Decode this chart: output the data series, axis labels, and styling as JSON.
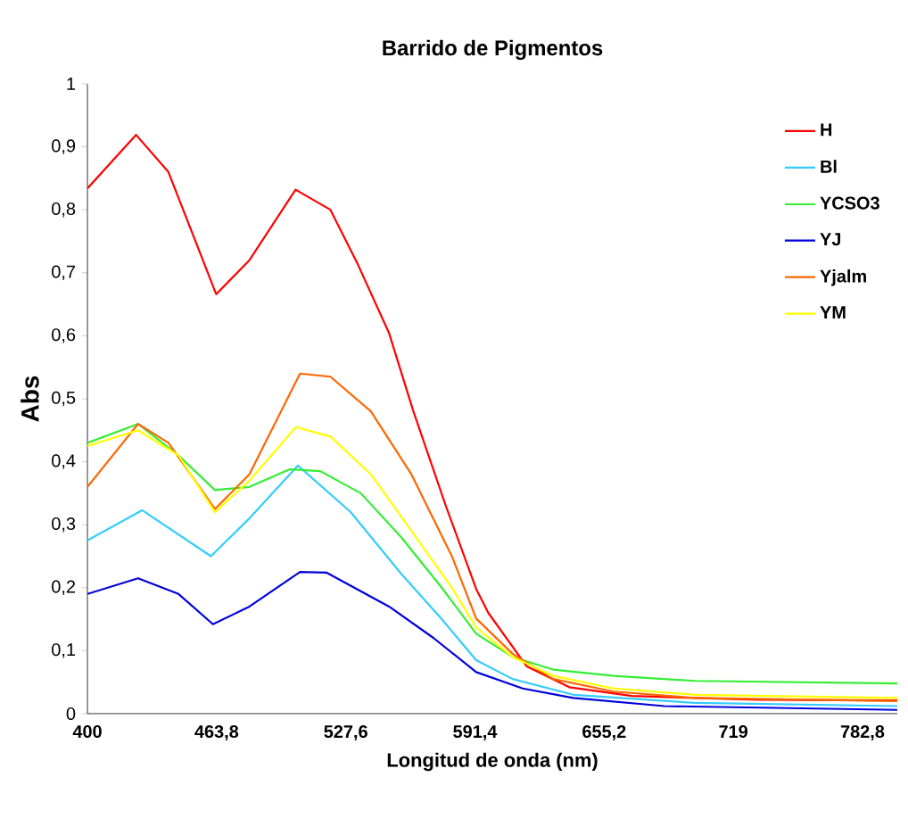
{
  "chart_data": {
    "type": "line",
    "title": "Barrido de Pigmentos",
    "xlabel": "Longitud de onda (nm)",
    "ylabel": "Abs",
    "xlim": [
      400,
      800
    ],
    "ylim": [
      0,
      1
    ],
    "xticks": [
      400,
      {
        "value": 463.8,
        "label": "463,8"
      },
      {
        "value": 527.6,
        "label": "527,6"
      },
      {
        "value": 591.4,
        "label": "591,4"
      },
      {
        "value": 655.2,
        "label": "655,2"
      },
      719,
      {
        "value": 782.8,
        "label": "782,8"
      }
    ],
    "yticks": [
      0,
      {
        "value": 0.1,
        "label": "0,1"
      },
      {
        "value": 0.2,
        "label": "0,2"
      },
      {
        "value": 0.3,
        "label": "0,3"
      },
      {
        "value": 0.4,
        "label": "0,4"
      },
      {
        "value": 0.5,
        "label": "0,5"
      },
      {
        "value": 0.6,
        "label": "0,6"
      },
      {
        "value": 0.7,
        "label": "0,7"
      },
      {
        "value": 0.8,
        "label": "0,8"
      },
      {
        "value": 0.9,
        "label": "0,9"
      },
      1
    ],
    "grid": false,
    "legend": "right",
    "marker": "none",
    "line_style": "solid",
    "series": [
      {
        "name": "H",
        "color": "#ff0000",
        "x": [
          400,
          424,
          440,
          463.6,
          480,
          502.8,
          520,
          533.6,
          549,
          561,
          577,
          592,
          598,
          617,
          638,
          669,
          731,
          800
        ],
        "values": [
          0.834,
          0.919,
          0.86,
          0.666,
          0.72,
          0.832,
          0.8,
          0.713,
          0.604,
          0.48,
          0.33,
          0.198,
          0.16,
          0.075,
          0.042,
          0.028,
          0.022,
          0.021
        ]
      },
      {
        "name": "Bl",
        "color": "#33ccff",
        "x": [
          400,
          427,
          461,
          480,
          504,
          530,
          555,
          575,
          592,
          610,
          640,
          700,
          800
        ],
        "values": [
          0.275,
          0.323,
          0.25,
          0.31,
          0.394,
          0.32,
          0.222,
          0.15,
          0.085,
          0.055,
          0.03,
          0.017,
          0.012
        ]
      },
      {
        "name": "YCSO3",
        "color": "#33ee33",
        "x": [
          400,
          425,
          445,
          463,
          480,
          500,
          515,
          535,
          555,
          575,
          592,
          610,
          630,
          660,
          700,
          800
        ],
        "values": [
          0.43,
          0.46,
          0.41,
          0.355,
          0.36,
          0.388,
          0.385,
          0.35,
          0.28,
          0.2,
          0.127,
          0.09,
          0.07,
          0.06,
          0.052,
          0.048
        ]
      },
      {
        "name": "YJ",
        "color": "#0000dd",
        "x": [
          400,
          425,
          445,
          462,
          480,
          505,
          518,
          549,
          571,
          592,
          615,
          640,
          685,
          800
        ],
        "values": [
          0.19,
          0.215,
          0.19,
          0.142,
          0.17,
          0.225,
          0.224,
          0.17,
          0.12,
          0.066,
          0.04,
          0.025,
          0.012,
          0.006
        ]
      },
      {
        "name": "Yjalm",
        "color": "#ff6600",
        "x": [
          400,
          425,
          440,
          463,
          480,
          505,
          520,
          540,
          560,
          580,
          592,
          610,
          630,
          660,
          700,
          800
        ],
        "values": [
          0.36,
          0.46,
          0.43,
          0.325,
          0.38,
          0.54,
          0.535,
          0.48,
          0.38,
          0.25,
          0.151,
          0.095,
          0.055,
          0.035,
          0.025,
          0.02
        ]
      },
      {
        "name": "YM",
        "color": "#ffff00",
        "x": [
          400,
          425,
          445,
          463,
          480,
          503,
          520,
          540,
          560,
          580,
          592,
          610,
          630,
          660,
          700,
          800
        ],
        "values": [
          0.425,
          0.45,
          0.41,
          0.32,
          0.37,
          0.455,
          0.44,
          0.38,
          0.29,
          0.2,
          0.137,
          0.09,
          0.06,
          0.04,
          0.03,
          0.025
        ]
      }
    ]
  }
}
